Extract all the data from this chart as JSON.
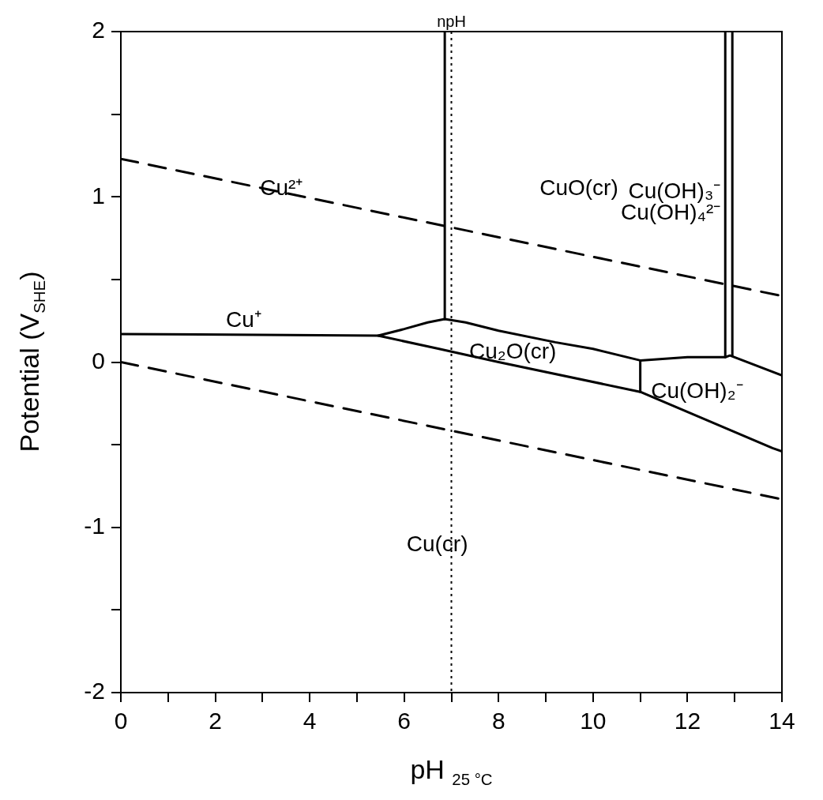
{
  "chart_data": {
    "type": "line",
    "xlabel": "pH $_{25 °C}$",
    "ylabel": "Potential (V$_{SHE}$)",
    "xlim": [
      0,
      14
    ],
    "ylim": [
      -2,
      2
    ],
    "xticks": [
      0,
      {
        "value": 1,
        "label": null
      },
      2,
      {
        "value": 3,
        "label": null
      },
      4,
      {
        "value": 5,
        "label": null
      },
      6,
      {
        "value": 7,
        "label": null
      },
      8,
      {
        "value": 9,
        "label": null
      },
      10,
      {
        "value": 11,
        "label": null
      },
      12,
      {
        "value": 13,
        "label": null
      },
      14
    ],
    "yticks": [
      -2,
      {
        "value": -1.5,
        "label": null
      },
      -1,
      {
        "value": -0.5,
        "label": null
      },
      0,
      {
        "value": 0.5,
        "label": null
      },
      1,
      {
        "value": 1.5,
        "label": null
      },
      2
    ],
    "marker": "none",
    "grid": false,
    "series": [
      {
        "color": "#000000",
        "line_style": "dashed",
        "x": [
          0,
          14
        ],
        "values": [
          1.23,
          0.4
        ]
      },
      {
        "color": "#000000",
        "line_style": "dashed",
        "x": [
          0,
          14
        ],
        "values": [
          0,
          -0.83
        ]
      },
      {
        "color": "#000000",
        "line_style": "solid",
        "x": [
          0,
          5.45,
          6,
          6.5,
          6.86,
          7.3,
          8,
          9.2,
          10,
          11,
          12,
          12.8,
          12.9,
          14
        ],
        "values": [
          0.17,
          0.16,
          0.2,
          0.24,
          0.26,
          0.24,
          0.19,
          0.12,
          0.08,
          0.01,
          0.03,
          0.03,
          0.04,
          -0.08
        ]
      },
      {
        "color": "#000000",
        "line_style": "solid",
        "x": [
          5.45,
          6.74,
          8,
          11,
          13.8,
          14
        ],
        "values": [
          0.16,
          0.08,
          0,
          -0.18,
          -0.52,
          -0.54
        ]
      },
      {
        "color": "#000000",
        "line_style": "solid",
        "x": [
          11,
          11
        ],
        "values": [
          -0.18,
          0.01
        ]
      },
      {
        "color": "#000000",
        "line_style": "solid",
        "x": [
          6.86,
          6.86
        ],
        "values": [
          0.26,
          2
        ]
      },
      {
        "color": "#000000",
        "line_style": "solid",
        "x": [
          12.8,
          12.8
        ],
        "values": [
          0.03,
          2
        ]
      },
      {
        "color": "#000000",
        "line_style": "solid",
        "x": [
          12.95,
          12.95
        ],
        "values": [
          0.04,
          2
        ]
      }
    ],
    "ref_lines": [
      {
        "axis": "x",
        "value": 7,
        "label": "npH",
        "line_style": "dotted",
        "color": "#000000"
      }
    ],
    "annotations": [
      "Cu²⁺",
      "CuO(cr)",
      "Cu(OH)₃⁻",
      "Cu(OH)₄²⁻",
      "Cu⁺",
      "Cu₂O(cr)",
      "Cu(OH)₂⁻",
      "Cu(cr)"
    ]
  }
}
